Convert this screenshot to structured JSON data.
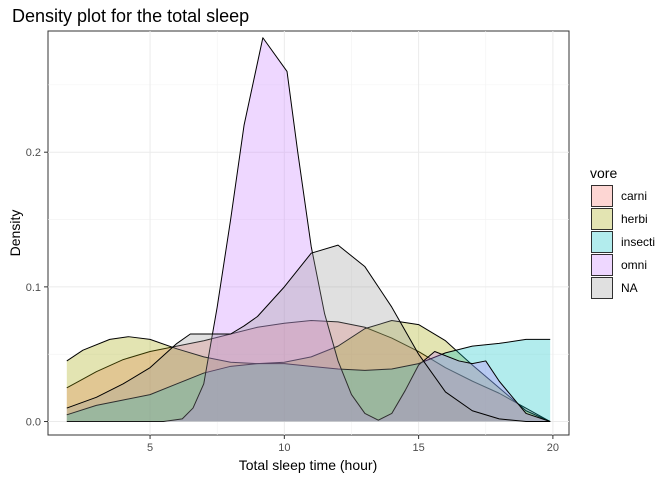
{
  "chart_data": {
    "type": "area",
    "title": "Density plot for the total sleep",
    "xlabel": "Total sleep time (hour)",
    "ylabel": "Density",
    "xlim": [
      1.2,
      20.6
    ],
    "ylim": [
      -0.01,
      0.29
    ],
    "x_ticks": [
      5,
      10,
      15,
      20
    ],
    "x_tick_labels": [
      "5",
      "10",
      "15",
      "20"
    ],
    "y_ticks": [
      0.0,
      0.1,
      0.2
    ],
    "y_tick_labels": [
      "0.0",
      "0.1",
      "0.2"
    ],
    "grid": true,
    "legend_title": "vore",
    "legend_position": "right",
    "fill_opacity": 0.3,
    "series": [
      {
        "name": "carni",
        "color": "#F8766D",
        "points": [
          [
            1.9,
            0.025
          ],
          [
            3,
            0.037
          ],
          [
            4,
            0.046
          ],
          [
            5,
            0.052
          ],
          [
            6,
            0.056
          ],
          [
            7,
            0.06
          ],
          [
            8,
            0.065
          ],
          [
            9,
            0.07
          ],
          [
            10,
            0.073
          ],
          [
            11,
            0.075
          ],
          [
            12,
            0.074
          ],
          [
            13,
            0.07
          ],
          [
            14,
            0.062
          ],
          [
            15,
            0.052
          ],
          [
            16,
            0.04
          ],
          [
            17,
            0.03
          ],
          [
            18,
            0.021
          ],
          [
            19.9,
            0.0
          ]
        ]
      },
      {
        "name": "herbi",
        "color": "#A3A500",
        "points": [
          [
            1.9,
            0.045
          ],
          [
            2.5,
            0.053
          ],
          [
            3.5,
            0.061
          ],
          [
            4.2,
            0.063
          ],
          [
            5,
            0.061
          ],
          [
            6,
            0.054
          ],
          [
            7,
            0.048
          ],
          [
            8,
            0.044
          ],
          [
            9,
            0.043
          ],
          [
            10,
            0.044
          ],
          [
            11,
            0.048
          ],
          [
            12,
            0.056
          ],
          [
            13,
            0.069
          ],
          [
            14,
            0.075
          ],
          [
            15,
            0.072
          ],
          [
            16,
            0.06
          ],
          [
            17,
            0.042
          ],
          [
            18,
            0.025
          ],
          [
            19,
            0.008
          ],
          [
            19.9,
            0.0
          ]
        ]
      },
      {
        "name": "insecti",
        "color": "#00BFC4",
        "points": [
          [
            1.9,
            0.005
          ],
          [
            3,
            0.012
          ],
          [
            4,
            0.016
          ],
          [
            5,
            0.02
          ],
          [
            6,
            0.028
          ],
          [
            7,
            0.036
          ],
          [
            8,
            0.041
          ],
          [
            9,
            0.043
          ],
          [
            10,
            0.043
          ],
          [
            11,
            0.041
          ],
          [
            12,
            0.039
          ],
          [
            13,
            0.038
          ],
          [
            14,
            0.039
          ],
          [
            15,
            0.043
          ],
          [
            16,
            0.051
          ],
          [
            17,
            0.056
          ],
          [
            18,
            0.058
          ],
          [
            19,
            0.061
          ],
          [
            19.9,
            0.061
          ]
        ]
      },
      {
        "name": "omni",
        "color": "#C77CFF",
        "points": [
          [
            1.9,
            0.0
          ],
          [
            5.5,
            0.0
          ],
          [
            6.2,
            0.002
          ],
          [
            6.6,
            0.01
          ],
          [
            7,
            0.028
          ],
          [
            7.5,
            0.085
          ],
          [
            8,
            0.15
          ],
          [
            8.5,
            0.22
          ],
          [
            9.2,
            0.285
          ],
          [
            10.1,
            0.26
          ],
          [
            10.5,
            0.2
          ],
          [
            11,
            0.13
          ],
          [
            11.5,
            0.08
          ],
          [
            12,
            0.045
          ],
          [
            12.5,
            0.02
          ],
          [
            13,
            0.006
          ],
          [
            13.5,
            0.001
          ],
          [
            14,
            0.006
          ],
          [
            14.5,
            0.023
          ],
          [
            15,
            0.042
          ],
          [
            15.6,
            0.052
          ],
          [
            16.5,
            0.045
          ],
          [
            17,
            0.043
          ],
          [
            17.5,
            0.045
          ],
          [
            18,
            0.03
          ],
          [
            19,
            0.006
          ],
          [
            19.9,
            0.0
          ]
        ]
      },
      {
        "name": "NA",
        "color": "#999999",
        "points": [
          [
            1.9,
            0.01
          ],
          [
            3,
            0.018
          ],
          [
            4,
            0.028
          ],
          [
            5,
            0.04
          ],
          [
            6,
            0.058
          ],
          [
            6.5,
            0.065
          ],
          [
            7,
            0.065
          ],
          [
            7.5,
            0.065
          ],
          [
            8,
            0.065
          ],
          [
            8.5,
            0.071
          ],
          [
            9,
            0.078
          ],
          [
            10,
            0.1
          ],
          [
            11,
            0.125
          ],
          [
            12,
            0.131
          ],
          [
            13,
            0.115
          ],
          [
            14,
            0.085
          ],
          [
            15,
            0.05
          ],
          [
            16,
            0.022
          ],
          [
            17,
            0.008
          ],
          [
            18,
            0.002
          ],
          [
            19,
            0.0
          ],
          [
            19.9,
            0.0
          ]
        ]
      }
    ]
  }
}
